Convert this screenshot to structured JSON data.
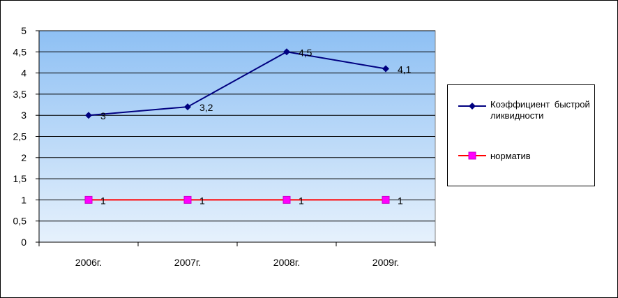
{
  "chart_data": {
    "type": "line",
    "categories": [
      "2006г.",
      "2007г.",
      "2008г.",
      "2009г."
    ],
    "series": [
      {
        "name": "Коэффициент быстрой ликвидности",
        "values": [
          3,
          3.2,
          4.5,
          4.1
        ],
        "color": "#000080",
        "marker": "diamond"
      },
      {
        "name": "норматив",
        "values": [
          1,
          1,
          1,
          1
        ],
        "color": "#ff0000",
        "marker": "square",
        "marker_color": "#ff00ff"
      }
    ],
    "data_labels": [
      [
        "3",
        "3,2",
        "4,5",
        "4,1"
      ],
      [
        "1",
        "1",
        "1",
        "1"
      ]
    ],
    "y_ticks": [
      "0",
      "0,5",
      "1",
      "1,5",
      "2",
      "2,5",
      "3",
      "3,5",
      "4",
      "4,5",
      "5"
    ],
    "ylim": [
      0,
      5
    ],
    "grid": true,
    "legend": "right",
    "plot_background": {
      "top": "#8ec0f4",
      "bottom": "#e6f1fc"
    }
  }
}
